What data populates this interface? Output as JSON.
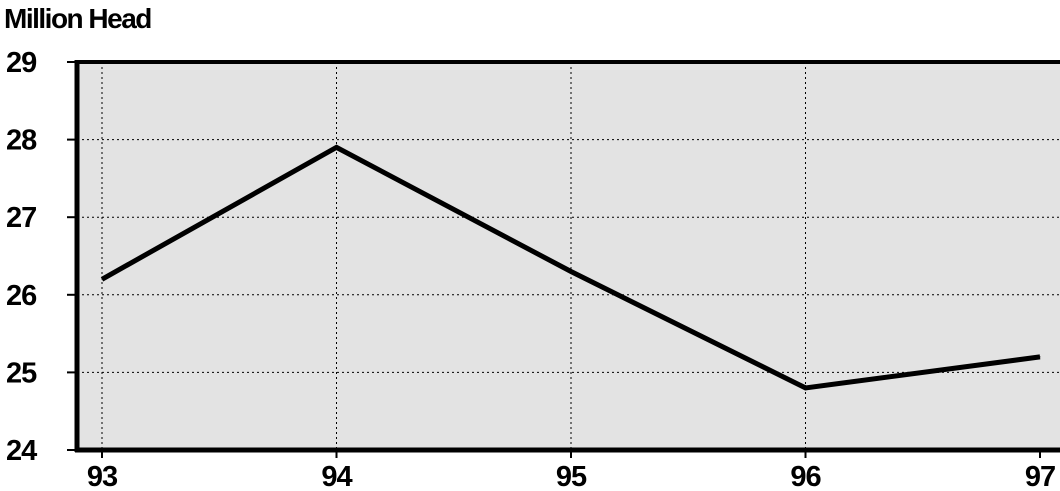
{
  "chart_data": {
    "type": "line",
    "title": "",
    "xlabel": "",
    "ylabel": "Million Head",
    "categories": [
      "93",
      "94",
      "95",
      "96",
      "97"
    ],
    "series": [
      {
        "values": [
          26.2,
          27.9,
          26.3,
          24.8,
          25.2
        ]
      }
    ],
    "yticks": [
      "24",
      "25",
      "26",
      "27",
      "28",
      "29"
    ],
    "ylim": [
      24,
      29
    ],
    "grid": true,
    "legend": "none",
    "colors": {
      "plot_background": "#e3e3e3",
      "line": "#000000",
      "grid": "#000000",
      "axis": "#000000"
    }
  }
}
